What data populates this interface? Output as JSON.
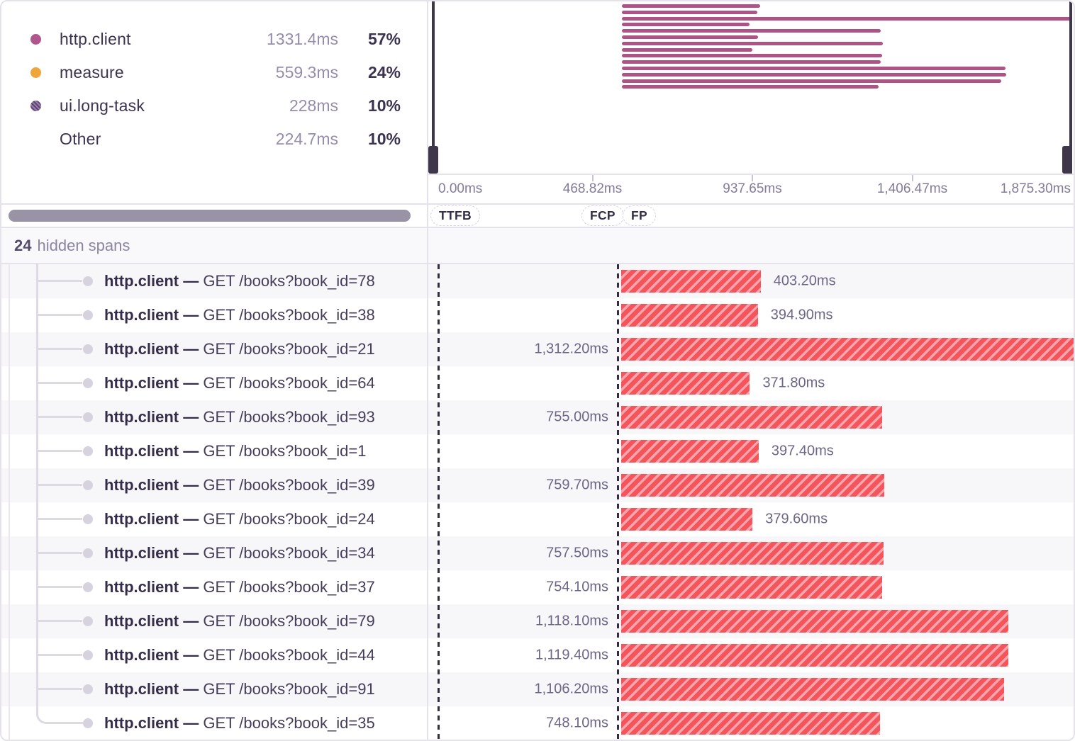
{
  "legend": {
    "items": [
      {
        "label": "http.client",
        "value": "1331.4ms",
        "percent": "57%",
        "swatch": "solid",
        "color": "#b1568c",
        "color2": null
      },
      {
        "label": "measure",
        "value": "559.3ms",
        "percent": "24%",
        "swatch": "solid",
        "color": "#efa53a",
        "color2": null
      },
      {
        "label": "ui.long-task",
        "value": "228ms",
        "percent": "10%",
        "swatch": "pattern",
        "color": "#5e4470",
        "color2": "#9a7fae"
      },
      {
        "label": "Other",
        "value": "224.7ms",
        "percent": "10%",
        "swatch": "none",
        "color": null,
        "color2": null
      }
    ]
  },
  "minimap": {
    "bar_color": "#ad5386",
    "handle_color": "#3e3749"
  },
  "axis": {
    "tick_labels": [
      "0.00ms",
      "468.82ms",
      "937.65ms",
      "1,406.47ms",
      "1,875.30ms"
    ]
  },
  "markers": [
    {
      "label": "TTFB"
    },
    {
      "label": "FCP"
    },
    {
      "label": "FP"
    }
  ],
  "hidden_spans": {
    "count": "24",
    "label": "hidden spans"
  },
  "span_list": {
    "separator": "—",
    "bar_colors": {
      "base": "#f4545c",
      "stripe": "#f8a6ab"
    },
    "spans": [
      {
        "op": "http.client",
        "description": "GET /books?book_id=78",
        "duration_ms": 403.2,
        "duration_label": "403.20ms"
      },
      {
        "op": "http.client",
        "description": "GET /books?book_id=38",
        "duration_ms": 394.9,
        "duration_label": "394.90ms"
      },
      {
        "op": "http.client",
        "description": "GET /books?book_id=21",
        "duration_ms": 1312.2,
        "duration_label": "1,312.20ms"
      },
      {
        "op": "http.client",
        "description": "GET /books?book_id=64",
        "duration_ms": 371.8,
        "duration_label": "371.80ms"
      },
      {
        "op": "http.client",
        "description": "GET /books?book_id=93",
        "duration_ms": 755.0,
        "duration_label": "755.00ms"
      },
      {
        "op": "http.client",
        "description": "GET /books?book_id=1",
        "duration_ms": 397.4,
        "duration_label": "397.40ms"
      },
      {
        "op": "http.client",
        "description": "GET /books?book_id=39",
        "duration_ms": 759.7,
        "duration_label": "759.70ms"
      },
      {
        "op": "http.client",
        "description": "GET /books?book_id=24",
        "duration_ms": 379.6,
        "duration_label": "379.60ms"
      },
      {
        "op": "http.client",
        "description": "GET /books?book_id=34",
        "duration_ms": 757.5,
        "duration_label": "757.50ms"
      },
      {
        "op": "http.client",
        "description": "GET /books?book_id=37",
        "duration_ms": 754.1,
        "duration_label": "754.10ms"
      },
      {
        "op": "http.client",
        "description": "GET /books?book_id=79",
        "duration_ms": 1118.1,
        "duration_label": "1,118.10ms"
      },
      {
        "op": "http.client",
        "description": "GET /books?book_id=44",
        "duration_ms": 1119.4,
        "duration_label": "1,119.40ms"
      },
      {
        "op": "http.client",
        "description": "GET /books?book_id=91",
        "duration_ms": 1106.2,
        "duration_label": "1,106.20ms"
      },
      {
        "op": "http.client",
        "description": "GET /books?book_id=35",
        "duration_ms": 748.1,
        "duration_label": "748.10ms"
      }
    ]
  }
}
